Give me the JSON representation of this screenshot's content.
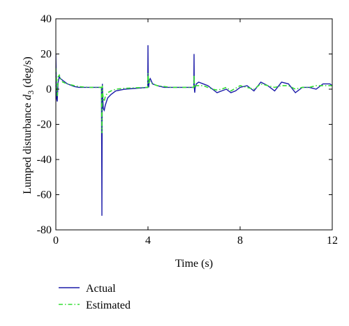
{
  "chart_data": {
    "type": "line",
    "xlabel": "Time (s)",
    "ylabel_main": "Lumped disturbance ",
    "ylabel_var": "d",
    "ylabel_sub": "3",
    "ylabel_unit": " (deg/s)",
    "xlim": [
      0,
      12
    ],
    "ylim": [
      -80,
      40
    ],
    "xticks": [
      0,
      4,
      8,
      12
    ],
    "yticks": [
      40,
      20,
      0,
      -20,
      -40,
      -60,
      -80
    ],
    "grid": false,
    "legend_position": "bottom-left",
    "series": [
      {
        "name": "Actual",
        "color": "#1a1aa8",
        "style": "solid",
        "x": [
          0,
          0.03,
          0.06,
          0.1,
          0.15,
          0.2,
          0.3,
          0.5,
          0.8,
          1.0,
          1.2,
          1.5,
          1.8,
          1.98,
          2.0,
          2.01,
          2.02,
          2.04,
          2.06,
          2.1,
          2.15,
          2.25,
          2.4,
          2.6,
          3.0,
          3.5,
          3.99,
          4.0,
          4.01,
          4.03,
          4.06,
          4.1,
          4.2,
          4.4,
          4.7,
          5.0,
          5.5,
          5.99,
          6.0,
          6.01,
          6.03,
          6.05,
          6.1,
          6.2,
          6.4,
          6.6,
          6.8,
          7.0,
          7.2,
          7.4,
          7.6,
          7.8,
          8.0,
          8.3,
          8.6,
          8.9,
          9.2,
          9.5,
          9.8,
          10.1,
          10.4,
          10.7,
          11.0,
          11.3,
          11.6,
          11.9,
          12.0
        ],
        "y": [
          20,
          -5,
          -7,
          4,
          7,
          6,
          5,
          3,
          1.5,
          1.0,
          1.0,
          1.0,
          1.0,
          1.0,
          -72,
          -20,
          3,
          -6,
          -11,
          -12,
          -9,
          -5,
          -3,
          -1,
          0,
          0.5,
          1.0,
          25,
          6,
          1,
          5,
          6,
          3,
          2,
          1,
          1,
          1,
          1,
          20,
          1,
          -2,
          1,
          3,
          4,
          3,
          2,
          0,
          -2,
          -1,
          0,
          -2,
          -1,
          1,
          2,
          -1,
          4,
          2,
          -1,
          4,
          3,
          -2,
          1,
          1,
          0,
          3,
          3,
          2
        ]
      },
      {
        "name": "Estimated",
        "color": "#33dd33",
        "style": "dash-dot",
        "x": [
          0,
          0.03,
          0.06,
          0.1,
          0.15,
          0.2,
          0.3,
          0.5,
          0.8,
          1.0,
          1.2,
          1.5,
          1.8,
          1.98,
          2.0,
          2.01,
          2.02,
          2.04,
          2.06,
          2.1,
          2.15,
          2.25,
          2.4,
          2.6,
          3.0,
          3.5,
          3.99,
          4.0,
          4.01,
          4.03,
          4.06,
          4.1,
          4.2,
          4.4,
          4.7,
          5.0,
          5.5,
          5.99,
          6.0,
          6.01,
          6.03,
          6.05,
          6.1,
          6.2,
          6.4,
          6.6,
          6.8,
          7.0,
          7.2,
          7.4,
          7.6,
          7.8,
          8.0,
          8.3,
          8.6,
          8.9,
          9.2,
          9.5,
          9.8,
          10.1,
          10.4,
          10.7,
          11.0,
          11.3,
          11.6,
          11.9,
          12.0
        ],
        "y": [
          12,
          5,
          -4,
          7,
          8,
          6,
          4,
          3,
          2,
          1.5,
          1.2,
          1.0,
          1.0,
          1.0,
          -25,
          -5,
          2,
          -3,
          -5,
          -7,
          -4,
          -2,
          -1,
          0,
          0.5,
          0.8,
          1.0,
          9,
          8,
          3,
          5,
          4,
          3,
          2,
          1.5,
          1,
          1,
          1,
          8,
          4,
          1,
          2,
          2,
          2,
          2,
          1,
          0,
          -0.5,
          0,
          1,
          -1,
          0.5,
          2,
          1,
          0,
          3,
          2,
          1,
          2,
          2,
          0,
          1,
          1,
          2,
          2,
          2,
          2
        ]
      }
    ]
  }
}
